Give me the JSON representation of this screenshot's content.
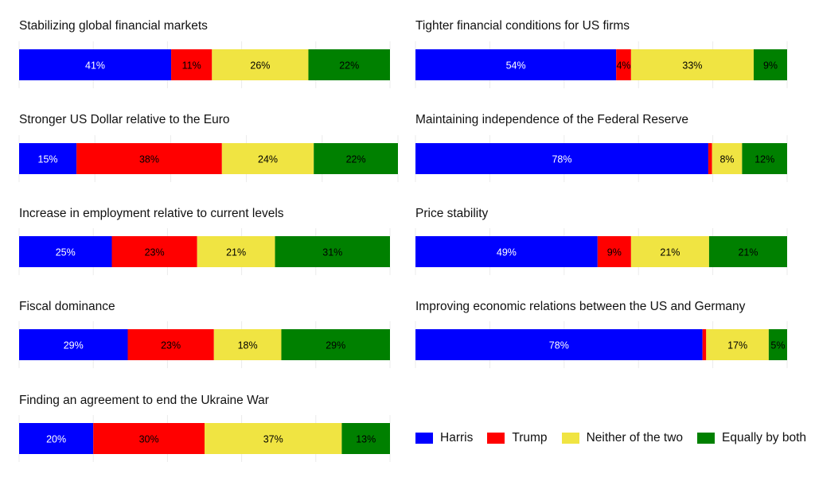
{
  "chart_data": {
    "type": "bar",
    "orientation": "horizontal-stacked-percent",
    "grid": true,
    "legend_position": "bottom-right",
    "series": [
      {
        "name": "Harris",
        "color": "#0000ff"
      },
      {
        "name": "Trump",
        "color": "#ff0000"
      },
      {
        "name": "Neither of the two",
        "color": "#f0e442"
      },
      {
        "name": "Equally by both",
        "color": "#008000"
      }
    ],
    "panels": [
      {
        "title": "Stabilizing global financial markets",
        "values": [
          41,
          11,
          26,
          22
        ],
        "labels": [
          "41%",
          "11%",
          "26%",
          "22%"
        ]
      },
      {
        "title": "Tighter financial conditions for US firms",
        "values": [
          54,
          4,
          33,
          9
        ],
        "labels": [
          "54%",
          "4%",
          "33%",
          "9%"
        ]
      },
      {
        "title": "Stronger US Dollar relative to the Euro",
        "values": [
          15,
          38,
          24,
          22
        ],
        "labels": [
          "15%",
          "38%",
          "24%",
          "22%"
        ]
      },
      {
        "title": "Maintaining independence of the Federal Reserve",
        "values": [
          78,
          1,
          8,
          12
        ],
        "labels": [
          "78%",
          "",
          "8%",
          "12%"
        ]
      },
      {
        "title": "Increase in employment relative to current levels",
        "values": [
          25,
          23,
          21,
          31
        ],
        "labels": [
          "25%",
          "23%",
          "21%",
          "31%"
        ]
      },
      {
        "title": "Price stability",
        "values": [
          49,
          9,
          21,
          21
        ],
        "labels": [
          "49%",
          "9%",
          "21%",
          "21%"
        ]
      },
      {
        "title": "Fiscal dominance",
        "values": [
          29,
          23,
          18,
          29
        ],
        "labels": [
          "29%",
          "23%",
          "18%",
          "29%"
        ]
      },
      {
        "title": "Improving economic relations between the US and Germany",
        "values": [
          78,
          1,
          17,
          5
        ],
        "labels": [
          "78%",
          "",
          "17%",
          "5%"
        ]
      },
      {
        "title": "Finding an agreement to end the Ukraine War",
        "values": [
          20,
          30,
          37,
          13
        ],
        "labels": [
          "20%",
          "30%",
          "37%",
          "13%"
        ]
      }
    ]
  }
}
